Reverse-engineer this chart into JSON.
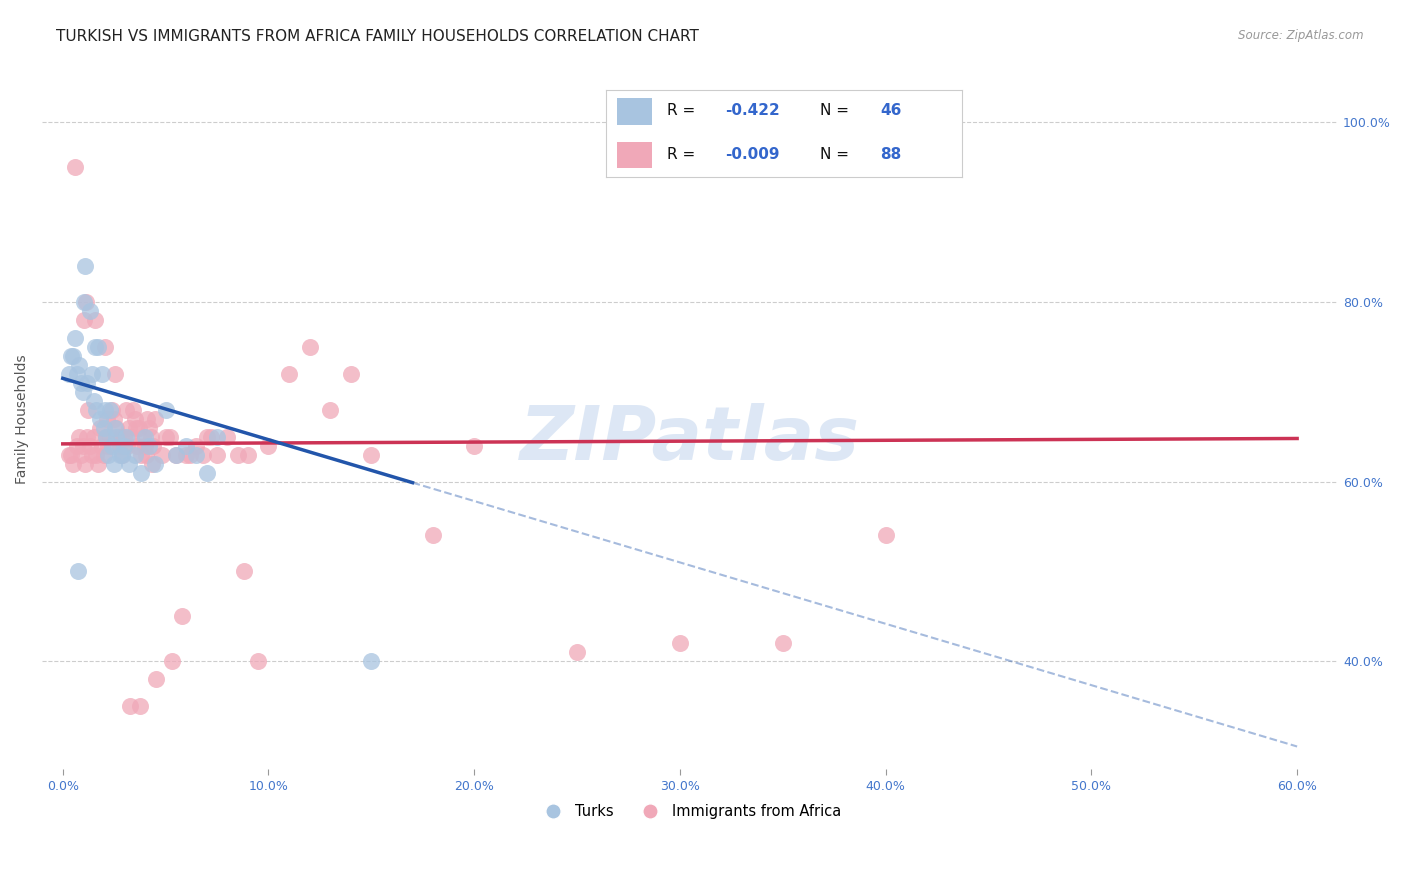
{
  "title": "TURKISH VS IMMIGRANTS FROM AFRICA FAMILY HOUSEHOLDS CORRELATION CHART",
  "source": "Source: ZipAtlas.com",
  "ylabel_label": "Family Households",
  "xlim": [
    -1.0,
    62
  ],
  "ylim": [
    28,
    106
  ],
  "blue_R": "-0.422",
  "blue_N": "46",
  "pink_R": "-0.009",
  "pink_N": "88",
  "blue_color": "#a8c4e0",
  "blue_line_color": "#2255aa",
  "pink_color": "#f0a8b8",
  "pink_line_color": "#cc3355",
  "legend_label_1": "Turks",
  "legend_label_2": "Immigrants from Africa",
  "blue_scatter_x": [
    0.3,
    0.4,
    0.5,
    0.6,
    0.7,
    0.8,
    0.9,
    1.0,
    1.1,
    1.2,
    1.3,
    1.4,
    1.5,
    1.6,
    1.7,
    1.8,
    1.9,
    2.0,
    2.1,
    2.2,
    2.3,
    2.4,
    2.5,
    2.6,
    2.8,
    3.0,
    3.2,
    3.5,
    3.8,
    4.0,
    4.2,
    4.5,
    5.0,
    5.5,
    6.0,
    6.5,
    7.0,
    7.5,
    1.05,
    1.55,
    2.05,
    2.55,
    3.05,
    15.0,
    2.9,
    0.75
  ],
  "blue_scatter_y": [
    72,
    74,
    74,
    76,
    72,
    73,
    71,
    70,
    84,
    71,
    79,
    72,
    69,
    68,
    75,
    67,
    72,
    66,
    65,
    63,
    68,
    64,
    62,
    65,
    63,
    64,
    62,
    63,
    61,
    65,
    64,
    62,
    68,
    63,
    64,
    63,
    61,
    65,
    80,
    75,
    68,
    66,
    65,
    40,
    63,
    50
  ],
  "pink_scatter_x": [
    0.3,
    0.5,
    0.7,
    0.8,
    0.9,
    1.0,
    1.1,
    1.2,
    1.3,
    1.4,
    1.5,
    1.6,
    1.7,
    1.8,
    1.9,
    2.0,
    2.1,
    2.2,
    2.3,
    2.4,
    2.5,
    2.6,
    2.7,
    2.8,
    2.9,
    3.0,
    3.1,
    3.2,
    3.3,
    3.4,
    3.5,
    3.6,
    3.7,
    3.8,
    3.9,
    4.0,
    4.1,
    4.2,
    4.3,
    4.4,
    4.5,
    4.8,
    5.0,
    5.5,
    6.0,
    6.5,
    7.0,
    7.5,
    8.0,
    9.0,
    10.0,
    11.0,
    12.0,
    13.0,
    14.0,
    15.0,
    18.0,
    20.0,
    25.0,
    30.0,
    35.0,
    0.4,
    1.05,
    1.55,
    2.05,
    2.55,
    3.05,
    3.55,
    4.05,
    5.2,
    6.2,
    7.2,
    8.5,
    1.25,
    2.15,
    2.85,
    4.35,
    5.8,
    8.8,
    3.25,
    3.75,
    4.55,
    5.3,
    9.5,
    6.8,
    0.6,
    1.15,
    40.0
  ],
  "pink_scatter_y": [
    63,
    62,
    64,
    65,
    63,
    64,
    62,
    65,
    64,
    63,
    65,
    63,
    62,
    66,
    64,
    63,
    65,
    64,
    65,
    68,
    67,
    66,
    65,
    64,
    63,
    65,
    64,
    66,
    65,
    68,
    67,
    64,
    66,
    63,
    65,
    64,
    67,
    66,
    65,
    64,
    67,
    63,
    65,
    63,
    63,
    64,
    65,
    63,
    65,
    63,
    64,
    72,
    75,
    68,
    72,
    63,
    54,
    64,
    41,
    42,
    42,
    63,
    78,
    78,
    75,
    72,
    68,
    66,
    63,
    65,
    63,
    65,
    63,
    68,
    67,
    65,
    62,
    45,
    50,
    35,
    35,
    38,
    40,
    40,
    63,
    95,
    80,
    54
  ],
  "blue_trend_x0": 0.0,
  "blue_trend_y0": 71.5,
  "blue_solid_end_x": 17.0,
  "blue_trend_x1": 60.0,
  "blue_trend_y1": 30.5,
  "pink_trend_x0": 0.0,
  "pink_trend_y0": 64.2,
  "pink_trend_x1": 60.0,
  "pink_trend_y1": 64.8,
  "watermark": "ZIPatlas",
  "background_color": "#ffffff",
  "grid_color": "#c8c8c8",
  "title_fontsize": 11,
  "axis_fontsize": 9,
  "x_tick_vals": [
    0,
    10,
    20,
    30,
    40,
    50,
    60
  ],
  "y_tick_vals": [
    40,
    60,
    80,
    100
  ]
}
